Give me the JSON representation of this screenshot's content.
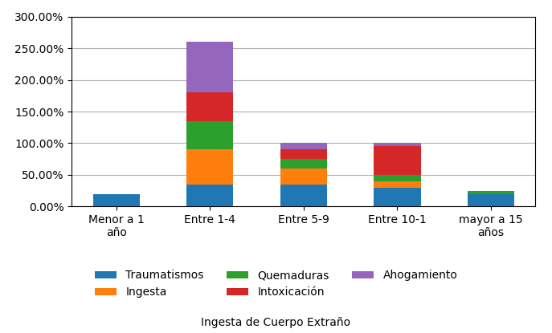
{
  "chart_data": {
    "type": "bar",
    "stacked": true,
    "categories": [
      "Menor a 1\naño",
      "Entre 1-4",
      "Entre 5-9",
      "Entre 10-1",
      "mayor a 15\naños"
    ],
    "series": [
      {
        "name": "Traumatismos",
        "values": [
          20,
          35,
          35,
          30,
          20
        ]
      },
      {
        "name": "Ingesta",
        "values": [
          0,
          55,
          25,
          10,
          0
        ]
      },
      {
        "name": "Quemaduras",
        "values": [
          0,
          45,
          15,
          10,
          5
        ]
      },
      {
        "name": "Intoxicación",
        "values": [
          0,
          45,
          15,
          45,
          0
        ]
      },
      {
        "name": "Ahogamiento",
        "values": [
          0,
          80,
          10,
          5,
          0
        ]
      }
    ],
    "ylim": [
      0,
      300
    ],
    "yticks": [
      {
        "value": 0,
        "label": "0.00%"
      },
      {
        "value": 50,
        "label": "50.00%"
      },
      {
        "value": 100,
        "label": "100.00%"
      },
      {
        "value": 150,
        "label": "150.00%"
      },
      {
        "value": 200,
        "label": "200.00%"
      },
      {
        "value": 250,
        "label": "250.00%"
      },
      {
        "value": 300,
        "label": "300.00%"
      }
    ],
    "grid": true,
    "legend": "lower center",
    "annotations": [
      "Ingesta de Cuerpo Extraño"
    ]
  }
}
